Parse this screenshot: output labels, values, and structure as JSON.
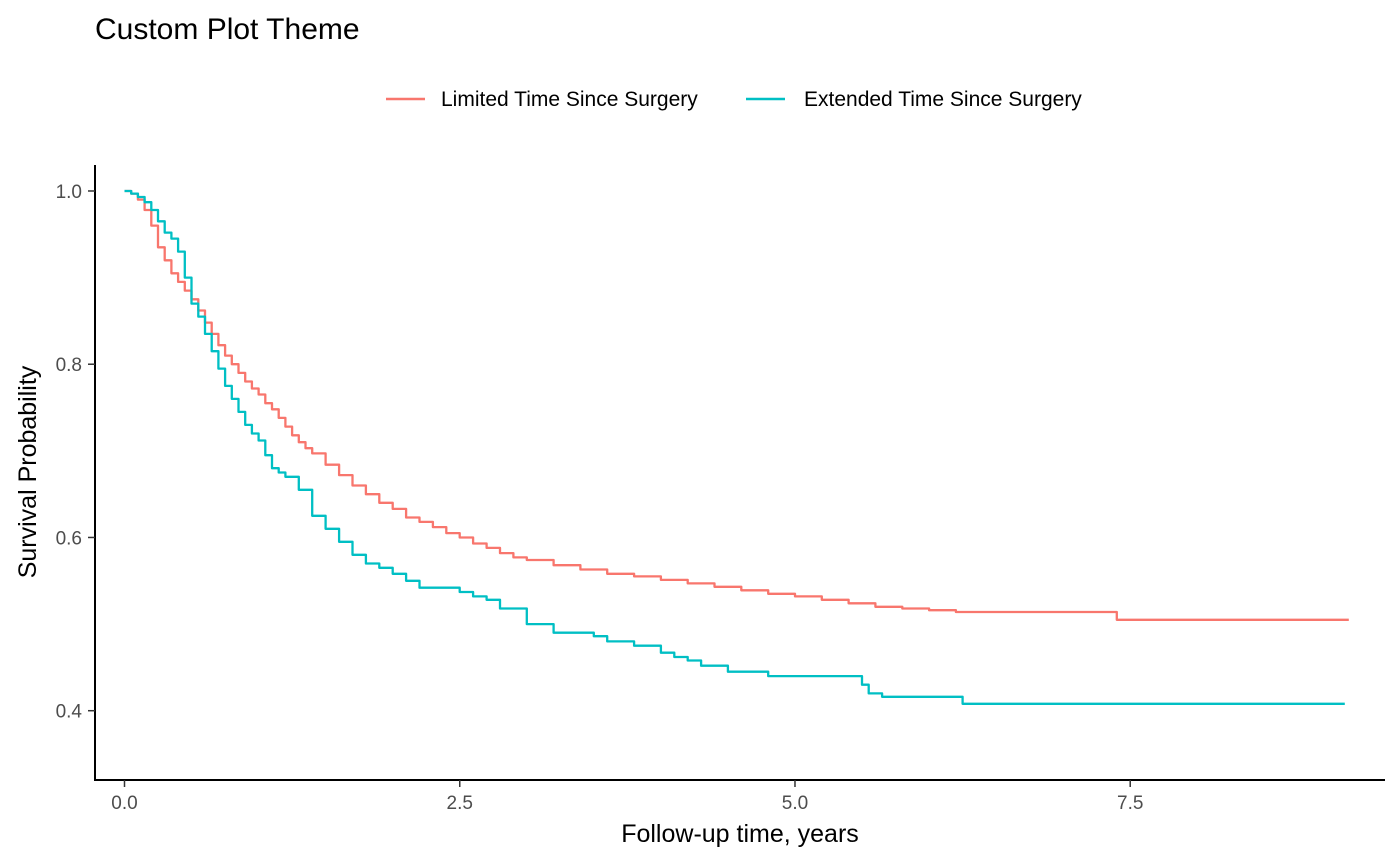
{
  "chart_data": {
    "type": "line",
    "title": "Custom Plot Theme",
    "xlabel": "Follow-up time, years",
    "ylabel": "Survival Probability",
    "xlim": [
      -0.22,
      9.4
    ],
    "ylim": [
      0.32,
      1.03
    ],
    "x_ticks": [
      0.0,
      2.5,
      5.0,
      7.5
    ],
    "x_tick_labels": [
      "0.0",
      "2.5",
      "5.0",
      "7.5"
    ],
    "y_ticks": [
      0.4,
      0.6,
      0.8,
      1.0
    ],
    "y_tick_labels": [
      "0.4",
      "0.6",
      "0.8",
      "1.0"
    ],
    "grid": false,
    "legend_position": "top",
    "step": true,
    "series": [
      {
        "name": "Limited Time Since Surgery",
        "color": "#F8766D",
        "x": [
          0,
          0.05,
          0.1,
          0.15,
          0.2,
          0.25,
          0.3,
          0.35,
          0.4,
          0.45,
          0.5,
          0.55,
          0.6,
          0.65,
          0.7,
          0.75,
          0.8,
          0.85,
          0.9,
          0.95,
          1.0,
          1.05,
          1.1,
          1.15,
          1.2,
          1.25,
          1.3,
          1.35,
          1.4,
          1.5,
          1.6,
          1.7,
          1.8,
          1.9,
          2.0,
          2.1,
          2.2,
          2.3,
          2.4,
          2.5,
          2.6,
          2.7,
          2.8,
          2.9,
          3.0,
          3.2,
          3.4,
          3.6,
          3.8,
          4.0,
          4.2,
          4.4,
          4.6,
          4.8,
          5.0,
          5.2,
          5.4,
          5.6,
          5.8,
          6.0,
          6.2,
          6.5,
          7.0,
          7.38,
          7.4,
          8.0,
          8.5,
          9.13
        ],
        "y": [
          1.0,
          0.997,
          0.99,
          0.978,
          0.96,
          0.935,
          0.92,
          0.905,
          0.895,
          0.885,
          0.875,
          0.862,
          0.848,
          0.835,
          0.822,
          0.81,
          0.8,
          0.79,
          0.78,
          0.772,
          0.765,
          0.755,
          0.748,
          0.738,
          0.728,
          0.718,
          0.71,
          0.703,
          0.697,
          0.684,
          0.672,
          0.66,
          0.65,
          0.64,
          0.633,
          0.623,
          0.618,
          0.612,
          0.605,
          0.6,
          0.593,
          0.588,
          0.582,
          0.577,
          0.574,
          0.568,
          0.563,
          0.558,
          0.555,
          0.551,
          0.547,
          0.543,
          0.539,
          0.535,
          0.532,
          0.528,
          0.524,
          0.52,
          0.518,
          0.516,
          0.514,
          0.514,
          0.514,
          0.514,
          0.505,
          0.505,
          0.505,
          0.505
        ]
      },
      {
        "name": "Extended Time Since Surgery",
        "color": "#00BFC4",
        "x": [
          0,
          0.05,
          0.1,
          0.15,
          0.2,
          0.25,
          0.3,
          0.35,
          0.4,
          0.45,
          0.5,
          0.55,
          0.6,
          0.65,
          0.7,
          0.75,
          0.8,
          0.85,
          0.9,
          0.95,
          1.0,
          1.05,
          1.1,
          1.15,
          1.2,
          1.3,
          1.4,
          1.5,
          1.6,
          1.7,
          1.8,
          1.9,
          2.0,
          2.1,
          2.2,
          2.5,
          2.6,
          2.7,
          2.8,
          3.0,
          3.2,
          3.5,
          3.6,
          3.8,
          4.0,
          4.1,
          4.2,
          4.3,
          4.5,
          4.8,
          5.0,
          5.4,
          5.5,
          5.55,
          5.65,
          6.0,
          6.25,
          7.0,
          8.0,
          9.1
        ],
        "y": [
          1.0,
          0.997,
          0.993,
          0.987,
          0.978,
          0.965,
          0.952,
          0.945,
          0.93,
          0.9,
          0.87,
          0.855,
          0.835,
          0.815,
          0.795,
          0.775,
          0.76,
          0.745,
          0.73,
          0.72,
          0.712,
          0.695,
          0.68,
          0.675,
          0.67,
          0.655,
          0.625,
          0.61,
          0.595,
          0.58,
          0.57,
          0.565,
          0.558,
          0.55,
          0.542,
          0.537,
          0.532,
          0.528,
          0.518,
          0.5,
          0.49,
          0.486,
          0.48,
          0.475,
          0.467,
          0.462,
          0.458,
          0.452,
          0.445,
          0.44,
          0.44,
          0.44,
          0.43,
          0.42,
          0.416,
          0.416,
          0.408,
          0.408,
          0.408,
          0.408
        ]
      }
    ]
  }
}
